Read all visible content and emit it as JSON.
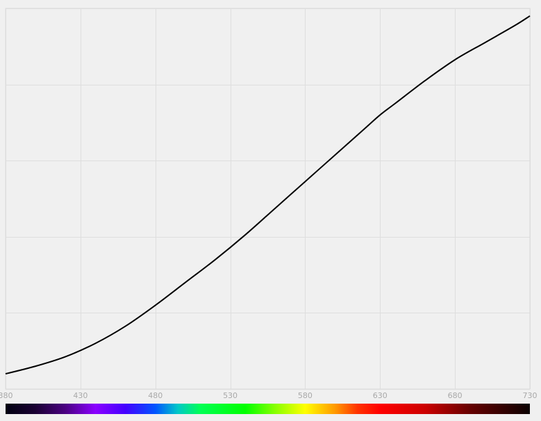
{
  "chart_data": {
    "type": "line",
    "title": "",
    "xlabel": "",
    "ylabel": "",
    "xlim": [
      380,
      730
    ],
    "ylim": [
      0,
      1
    ],
    "x_ticks": [
      380,
      430,
      480,
      530,
      580,
      630,
      680,
      730
    ],
    "y_grid_count": 5,
    "grid": true,
    "legend": "none",
    "colors": {
      "line": "#000000",
      "grid": "#dedede",
      "background": "#f0f0f0",
      "tick_label": "#a8a8a8"
    },
    "series": [
      {
        "x": [
          380,
          400,
          420,
          440,
          460,
          480,
          500,
          520,
          540,
          560,
          580,
          600,
          620,
          630,
          640,
          660,
          680,
          700,
          720,
          730
        ],
        "y": [
          0.04,
          0.06,
          0.085,
          0.12,
          0.165,
          0.22,
          0.28,
          0.34,
          0.405,
          0.475,
          0.545,
          0.615,
          0.685,
          0.72,
          0.75,
          0.81,
          0.865,
          0.91,
          0.955,
          0.98
        ]
      }
    ],
    "spectrum_bar": {
      "x_range": [
        380,
        730
      ],
      "stops": [
        {
          "x": 380,
          "color": "#000010"
        },
        {
          "x": 400,
          "color": "#1a0033"
        },
        {
          "x": 420,
          "color": "#4b0082"
        },
        {
          "x": 440,
          "color": "#8a00ff"
        },
        {
          "x": 460,
          "color": "#4400ff"
        },
        {
          "x": 480,
          "color": "#0055ff"
        },
        {
          "x": 495,
          "color": "#00c8c8"
        },
        {
          "x": 510,
          "color": "#00ff55"
        },
        {
          "x": 540,
          "color": "#00ff00"
        },
        {
          "x": 560,
          "color": "#88ff00"
        },
        {
          "x": 580,
          "color": "#ffff00"
        },
        {
          "x": 600,
          "color": "#ff9900"
        },
        {
          "x": 615,
          "color": "#ff3300"
        },
        {
          "x": 630,
          "color": "#ff0000"
        },
        {
          "x": 660,
          "color": "#cc0000"
        },
        {
          "x": 690,
          "color": "#660000"
        },
        {
          "x": 730,
          "color": "#0a0000"
        }
      ]
    }
  }
}
